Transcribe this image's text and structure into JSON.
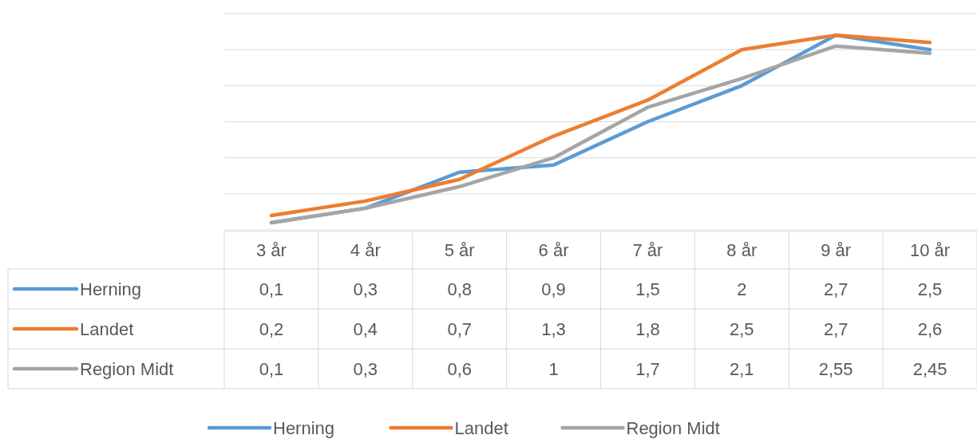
{
  "chart_data": {
    "type": "line",
    "categories": [
      "3 år",
      "4 år",
      "5 år",
      "6 år",
      "7 år",
      "8 år",
      "9 år",
      "10 år"
    ],
    "series": [
      {
        "name": "Herning",
        "color": "#5b9bd5",
        "values": [
          0.1,
          0.3,
          0.8,
          0.9,
          1.5,
          2,
          2.7,
          2.5
        ],
        "value_labels": [
          "0,1",
          "0,3",
          "0,8",
          "0,9",
          "1,5",
          "2",
          "2,7",
          "2,5"
        ]
      },
      {
        "name": "Landet",
        "color": "#ed7d31",
        "values": [
          0.2,
          0.4,
          0.7,
          1.3,
          1.8,
          2.5,
          2.7,
          2.6
        ],
        "value_labels": [
          "0,2",
          "0,4",
          "0,7",
          "1,3",
          "1,8",
          "2,5",
          "2,7",
          "2,6"
        ]
      },
      {
        "name": "Region Midt",
        "color": "#a5a5a5",
        "values": [
          0.1,
          0.3,
          0.6,
          1,
          1.7,
          2.1,
          2.55,
          2.45
        ],
        "value_labels": [
          "0,1",
          "0,3",
          "0,6",
          "1",
          "1,7",
          "2,1",
          "2,55",
          "2,45"
        ]
      }
    ],
    "ylim": [
      0,
      3
    ],
    "yticks": [
      {
        "value": 0,
        "label": null
      },
      {
        "value": 0.5,
        "label": null
      },
      {
        "value": 1,
        "label": null
      },
      {
        "value": 1.5,
        "label": null
      },
      {
        "value": 2,
        "label": null
      },
      {
        "value": 2.5,
        "label": null
      },
      {
        "value": 3,
        "label": null
      }
    ],
    "grid": "y",
    "tick_labels": "x",
    "legend": "bottom",
    "marker": "none",
    "line_style": "solid"
  }
}
